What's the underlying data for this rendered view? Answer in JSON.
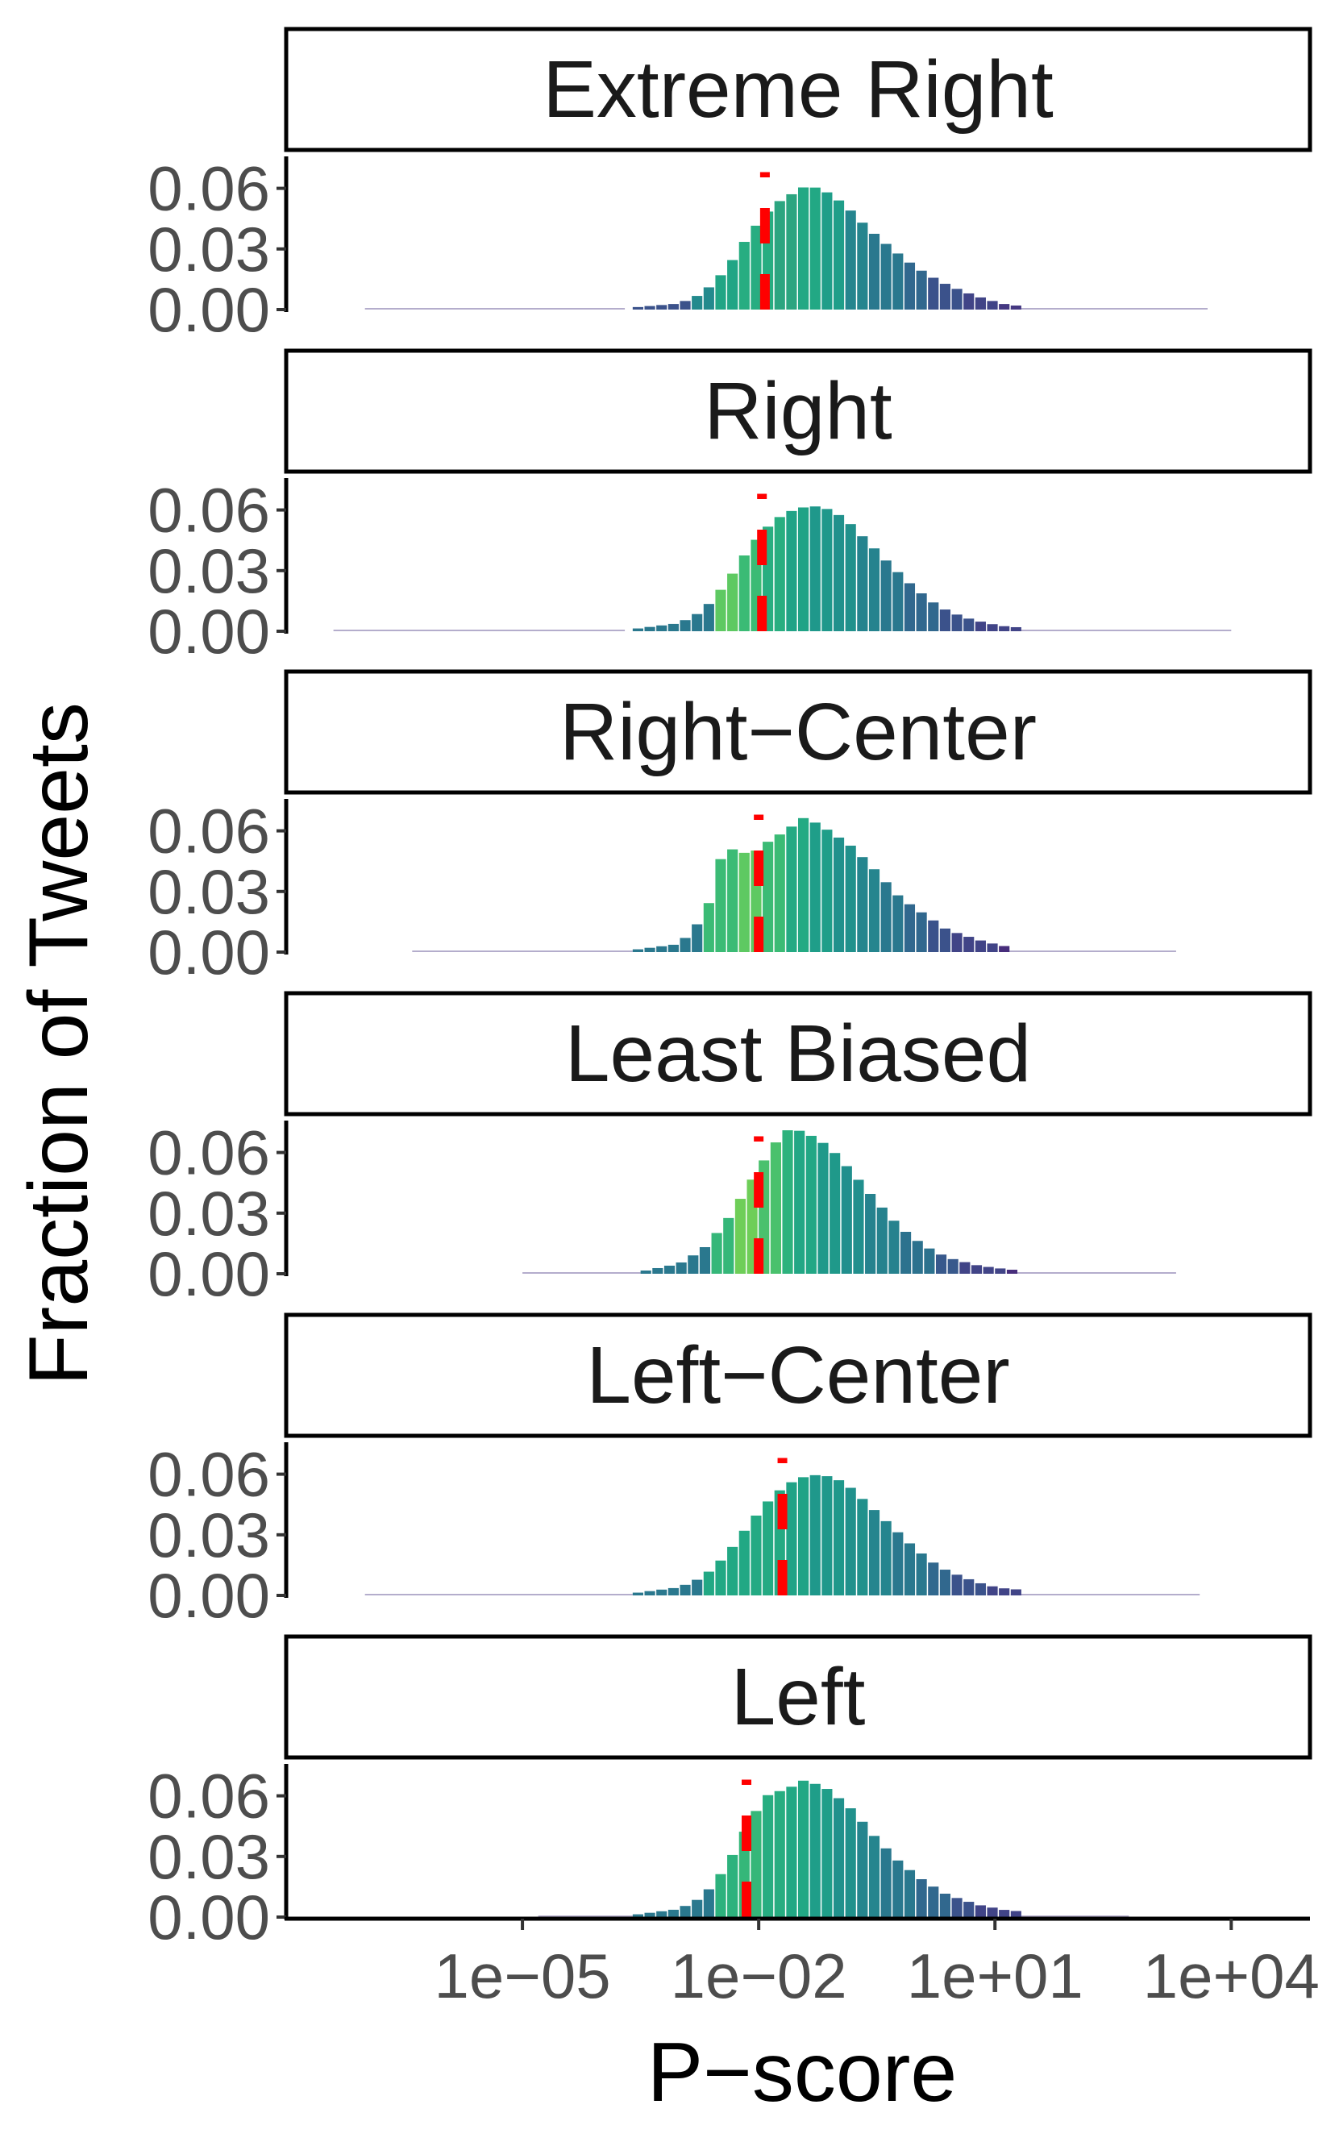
{
  "chart_data": {
    "type": "bar",
    "title": "",
    "xlabel": "P−score",
    "ylabel": "Fraction of Tweets",
    "x_scale": "log10",
    "xlim": [
      1e-08,
      100000
    ],
    "ylim": [
      0,
      0.075
    ],
    "x_ticks": [
      {
        "value": 1e-05,
        "label": "1e−05"
      },
      {
        "value": 0.01,
        "label": "1e−02"
      },
      {
        "value": 10,
        "label": "1e+01"
      },
      {
        "value": 10000,
        "label": "1e+04"
      }
    ],
    "y_ticks": [
      {
        "value": 0.0,
        "label": "0.00"
      },
      {
        "value": 0.03,
        "label": "0.03"
      },
      {
        "value": 0.06,
        "label": "0.06"
      }
    ],
    "bin_width_log10": 0.15,
    "grid": false,
    "legend": "none",
    "fill_palette": "viridis",
    "reference_line_color": "#ff0000",
    "panels": [
      {
        "name": "Extreme Right",
        "median": 0.012,
        "bins_log10": [
          -7.0,
          -1.0
        ],
        "tiny_lower": [
          -7.0,
          -3.7
        ],
        "tiny_upper": [
          1.2,
          3.7
        ],
        "points": [
          [
            -3.6,
            0.001
          ],
          [
            -3.0,
            0.003
          ],
          [
            -2.7,
            0.008
          ],
          [
            -2.4,
            0.02
          ],
          [
            -2.1,
            0.038
          ],
          [
            -1.8,
            0.052
          ],
          [
            -1.4,
            0.061
          ],
          [
            -1.2,
            0.06
          ],
          [
            -0.9,
            0.052
          ],
          [
            -0.6,
            0.04
          ],
          [
            -0.3,
            0.03
          ],
          [
            0.0,
            0.021
          ],
          [
            0.3,
            0.014
          ],
          [
            0.6,
            0.009
          ],
          [
            0.9,
            0.005
          ],
          [
            1.2,
            0.002
          ]
        ],
        "fills": [
          [
            -4.2,
            "#3b528b"
          ],
          [
            -3.0,
            "#238a8d"
          ],
          [
            -2.6,
            "#21a585"
          ],
          [
            -2.3,
            "#27ad81"
          ],
          [
            -1.9,
            "#2ca580"
          ],
          [
            -1.6,
            "#22a884"
          ],
          [
            -1.3,
            "#1f9e89"
          ],
          [
            -1.0,
            "#25858e"
          ],
          [
            -0.7,
            "#2a788e"
          ],
          [
            -0.3,
            "#31688e"
          ],
          [
            0.1,
            "#3b528b"
          ],
          [
            0.5,
            "#414487"
          ],
          [
            1.0,
            "#453882"
          ],
          [
            2.0,
            "#46307e"
          ]
        ]
      },
      {
        "name": "Right",
        "median": 0.011,
        "bins_log10": [
          -7.0,
          -1.0
        ],
        "tiny_lower": [
          -7.4,
          -3.7
        ],
        "tiny_upper": [
          1.2,
          4.0
        ],
        "points": [
          [
            -3.6,
            0.001
          ],
          [
            -3.0,
            0.004
          ],
          [
            -2.7,
            0.01
          ],
          [
            -2.4,
            0.024
          ],
          [
            -2.1,
            0.042
          ],
          [
            -1.8,
            0.055
          ],
          [
            -1.5,
            0.061
          ],
          [
            -1.2,
            0.062
          ],
          [
            -0.9,
            0.056
          ],
          [
            -0.6,
            0.044
          ],
          [
            -0.3,
            0.032
          ],
          [
            0.0,
            0.021
          ],
          [
            0.3,
            0.012
          ],
          [
            0.6,
            0.007
          ],
          [
            0.9,
            0.004
          ],
          [
            1.2,
            0.002
          ]
        ],
        "fills": [
          [
            -3.3,
            "#2a788e"
          ],
          [
            -2.7,
            "#5ec962"
          ],
          [
            -2.4,
            "#3bbb75"
          ],
          [
            -2.1,
            "#28ae80"
          ],
          [
            -1.8,
            "#20a386"
          ],
          [
            -1.5,
            "#1f988b"
          ],
          [
            -1.2,
            "#21918c"
          ],
          [
            -0.9,
            "#25838e"
          ],
          [
            -0.6,
            "#2a788e"
          ],
          [
            -0.2,
            "#31688e"
          ],
          [
            0.2,
            "#3b528b"
          ],
          [
            0.6,
            "#414487"
          ],
          [
            1.2,
            "#472d7b"
          ]
        ]
      },
      {
        "name": "Right−Center",
        "median": 0.01,
        "bins_log10": [
          -7.0,
          -1.0
        ],
        "tiny_lower": [
          -6.4,
          -3.6
        ],
        "tiny_upper": [
          1.1,
          3.3
        ],
        "points": [
          [
            -3.6,
            0.001
          ],
          [
            -3.0,
            0.004
          ],
          [
            -2.8,
            0.012
          ],
          [
            -2.6,
            0.026
          ],
          [
            -2.45,
            0.05
          ],
          [
            -2.3,
            0.051
          ],
          [
            -2.1,
            0.048
          ],
          [
            -1.9,
            0.054
          ],
          [
            -1.65,
            0.06
          ],
          [
            -1.4,
            0.067
          ],
          [
            -1.1,
            0.06
          ],
          [
            -0.8,
            0.052
          ],
          [
            -0.5,
            0.04
          ],
          [
            -0.2,
            0.027
          ],
          [
            0.1,
            0.019
          ],
          [
            0.4,
            0.011
          ],
          [
            0.8,
            0.006
          ],
          [
            1.1,
            0.003
          ]
        ],
        "fills": [
          [
            -3.3,
            "#2a788e"
          ],
          [
            -2.8,
            "#3bbb75"
          ],
          [
            -2.3,
            "#5ec962"
          ],
          [
            -2.0,
            "#3bbb75"
          ],
          [
            -1.8,
            "#24aa83"
          ],
          [
            -1.5,
            "#1f9e89"
          ],
          [
            -1.2,
            "#21918c"
          ],
          [
            -0.9,
            "#25858e"
          ],
          [
            -0.6,
            "#2a788e"
          ],
          [
            -0.3,
            "#31688e"
          ],
          [
            0.0,
            "#3b528b"
          ],
          [
            0.4,
            "#414487"
          ],
          [
            1.0,
            "#472d7b"
          ]
        ]
      },
      {
        "name": "Least Biased",
        "median": 0.01,
        "bins_log10": [
          -7.0,
          -1.0
        ],
        "tiny_lower": [
          -5.0,
          -3.5
        ],
        "tiny_upper": [
          1.2,
          3.3
        ],
        "points": [
          [
            -3.5,
            0.001
          ],
          [
            -3.0,
            0.005
          ],
          [
            -2.7,
            0.012
          ],
          [
            -2.4,
            0.026
          ],
          [
            -2.1,
            0.045
          ],
          [
            -1.8,
            0.064
          ],
          [
            -1.6,
            0.072
          ],
          [
            -1.4,
            0.07
          ],
          [
            -1.1,
            0.063
          ],
          [
            -0.8,
            0.05
          ],
          [
            -0.5,
            0.036
          ],
          [
            -0.2,
            0.023
          ],
          [
            0.1,
            0.014
          ],
          [
            0.4,
            0.008
          ],
          [
            0.8,
            0.004
          ],
          [
            1.2,
            0.002
          ]
        ],
        "fills": [
          [
            -3.2,
            "#2a788e"
          ],
          [
            -2.7,
            "#35b779"
          ],
          [
            -2.4,
            "#6ece58"
          ],
          [
            -2.1,
            "#4ac16d"
          ],
          [
            -1.8,
            "#2db27d"
          ],
          [
            -1.6,
            "#22a785"
          ],
          [
            -1.3,
            "#1f998a"
          ],
          [
            -1.0,
            "#218f8d"
          ],
          [
            -0.7,
            "#26828e"
          ],
          [
            -0.3,
            "#2c728e"
          ],
          [
            0.1,
            "#38598c"
          ],
          [
            0.5,
            "#414487"
          ],
          [
            1.0,
            "#472d7b"
          ]
        ]
      },
      {
        "name": "Left−Center",
        "median": 0.02,
        "bins_log10": [
          -7.0,
          -1.0
        ],
        "tiny_lower": [
          -7.0,
          -3.6
        ],
        "tiny_upper": [
          1.2,
          3.6
        ],
        "points": [
          [
            -3.6,
            0.001
          ],
          [
            -3.0,
            0.004
          ],
          [
            -2.7,
            0.009
          ],
          [
            -2.4,
            0.02
          ],
          [
            -2.1,
            0.036
          ],
          [
            -1.8,
            0.05
          ],
          [
            -1.5,
            0.058
          ],
          [
            -1.2,
            0.06
          ],
          [
            -0.9,
            0.056
          ],
          [
            -0.6,
            0.045
          ],
          [
            -0.3,
            0.034
          ],
          [
            0.0,
            0.023
          ],
          [
            0.3,
            0.014
          ],
          [
            0.6,
            0.009
          ],
          [
            0.9,
            0.005
          ],
          [
            1.2,
            0.003
          ]
        ],
        "fills": [
          [
            -3.4,
            "#2a788e"
          ],
          [
            -2.8,
            "#22a884"
          ],
          [
            -2.2,
            "#24aa83"
          ],
          [
            -1.8,
            "#20a386"
          ],
          [
            -1.4,
            "#1f988b"
          ],
          [
            -1.0,
            "#21918c"
          ],
          [
            -0.7,
            "#25858e"
          ],
          [
            -0.4,
            "#2a788e"
          ],
          [
            0.0,
            "#31688e"
          ],
          [
            0.4,
            "#3b528b"
          ],
          [
            0.8,
            "#414487"
          ],
          [
            1.4,
            "#472d7b"
          ]
        ]
      },
      {
        "name": "Left",
        "median": 0.007,
        "bins_log10": [
          -7.0,
          -1.0
        ],
        "tiny_lower": [
          -4.8,
          -3.6
        ],
        "tiny_upper": [
          1.3,
          2.7
        ],
        "points": [
          [
            -3.6,
            0.001
          ],
          [
            -3.0,
            0.004
          ],
          [
            -2.7,
            0.01
          ],
          [
            -2.4,
            0.025
          ],
          [
            -2.1,
            0.048
          ],
          [
            -1.9,
            0.06
          ],
          [
            -1.6,
            0.064
          ],
          [
            -1.4,
            0.068
          ],
          [
            -1.1,
            0.063
          ],
          [
            -0.8,
            0.053
          ],
          [
            -0.5,
            0.039
          ],
          [
            -0.2,
            0.027
          ],
          [
            0.1,
            0.018
          ],
          [
            0.4,
            0.011
          ],
          [
            0.8,
            0.006
          ],
          [
            1.2,
            0.003
          ]
        ],
        "fills": [
          [
            -3.3,
            "#2a788e"
          ],
          [
            -2.7,
            "#2db27d"
          ],
          [
            -2.3,
            "#35b779"
          ],
          [
            -2.0,
            "#27ad81"
          ],
          [
            -1.7,
            "#22a884"
          ],
          [
            -1.4,
            "#1f9e89"
          ],
          [
            -1.1,
            "#21918c"
          ],
          [
            -0.8,
            "#25858e"
          ],
          [
            -0.5,
            "#2a788e"
          ],
          [
            -0.1,
            "#31688e"
          ],
          [
            0.3,
            "#3b528b"
          ],
          [
            0.7,
            "#414487"
          ],
          [
            1.2,
            "#472d7b"
          ]
        ]
      }
    ]
  }
}
